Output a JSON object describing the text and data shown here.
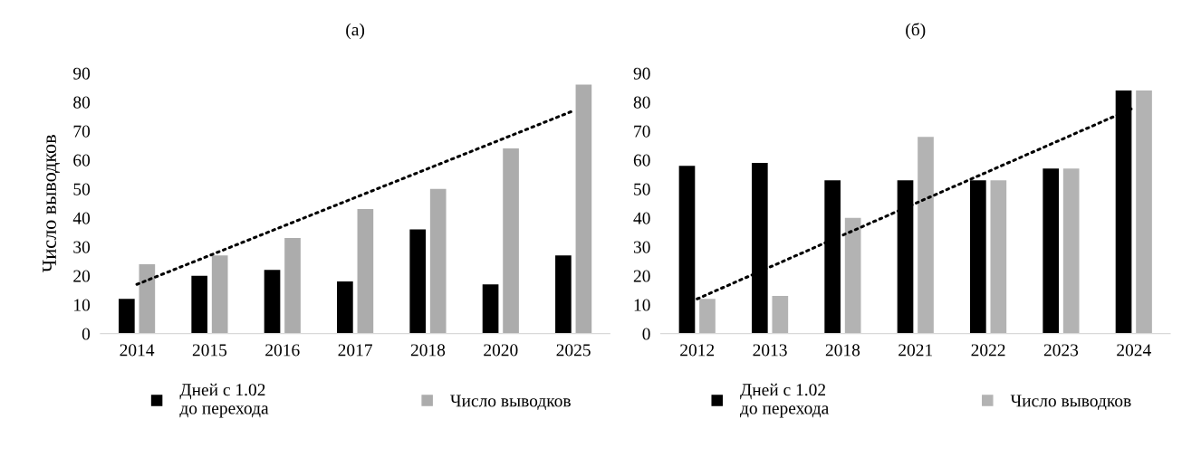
{
  "chart_data": [
    {
      "type": "bar",
      "title": "(а)",
      "ylabel": "Число выводков",
      "categories": [
        "2014",
        "2015",
        "2016",
        "2017",
        "2018",
        "2020",
        "2025"
      ],
      "ylim": [
        0,
        90
      ],
      "yticks": [
        0,
        10,
        20,
        30,
        40,
        50,
        60,
        70,
        80,
        90
      ],
      "grid": false,
      "legend": "bottom",
      "series": [
        {
          "name": "Дней с 1.02\nдо перехода",
          "color": "#000000",
          "values": [
            12,
            20,
            22,
            18,
            36,
            17,
            27
          ]
        },
        {
          "name": "Число выводков",
          "color": "#acacac",
          "values": [
            24,
            27,
            33,
            43,
            50,
            64,
            86
          ]
        },
        {
          "type": "line",
          "color": "#000000",
          "line_style": "dotted",
          "values": [
            17,
            27,
            37,
            47,
            57,
            67,
            77
          ]
        }
      ]
    },
    {
      "type": "bar",
      "title": "(б)",
      "categories": [
        "2012",
        "2013",
        "2018",
        "2021",
        "2022",
        "2023",
        "2024"
      ],
      "ylim": [
        0,
        90
      ],
      "yticks": [
        0,
        10,
        20,
        30,
        40,
        50,
        60,
        70,
        80,
        90
      ],
      "grid": false,
      "legend": "bottom",
      "series": [
        {
          "name": "Дней с 1.02\nдо перехода",
          "color": "#000000",
          "values": [
            58,
            59,
            53,
            53,
            53,
            57,
            84
          ]
        },
        {
          "name": "Число выводков",
          "color": "#b3b3b3",
          "values": [
            12,
            13,
            40,
            68,
            53,
            57,
            84
          ]
        },
        {
          "type": "line",
          "color": "#000000",
          "line_style": "dotted",
          "values": [
            12,
            23,
            34,
            45,
            56,
            67,
            78
          ]
        }
      ]
    }
  ]
}
